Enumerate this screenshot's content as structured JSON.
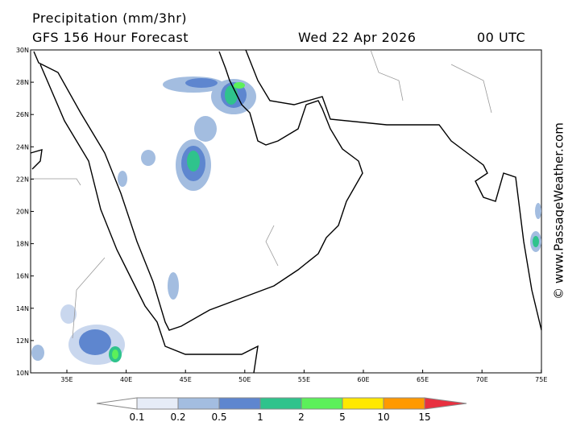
{
  "header": {
    "title": "Precipitation (mm/3hr)",
    "subtitle": "GFS 156 Hour Forecast",
    "date": "Wed 22 Apr 2026",
    "time": "00 UTC"
  },
  "map": {
    "lat_labels": [
      "30N",
      "28N",
      "26N",
      "24N",
      "22N",
      "20N",
      "18N",
      "16N",
      "14N",
      "12N",
      "10N"
    ],
    "lon_labels": [
      "35E",
      "40E",
      "45E",
      "50E",
      "55E",
      "60E",
      "65E",
      "70E",
      "75E"
    ]
  },
  "legend": {
    "labels": [
      0.1,
      0.2,
      0.5,
      1,
      2,
      5,
      10,
      15
    ],
    "colors": [
      "#ffffff",
      "#e6ecf7",
      "#a3bde0",
      "#5e86cf",
      "#2fc38c",
      "#5cf05a",
      "#ffe800",
      "#ff9900",
      "#e83040"
    ]
  },
  "watermark": "© www.PassageWeather.com"
}
